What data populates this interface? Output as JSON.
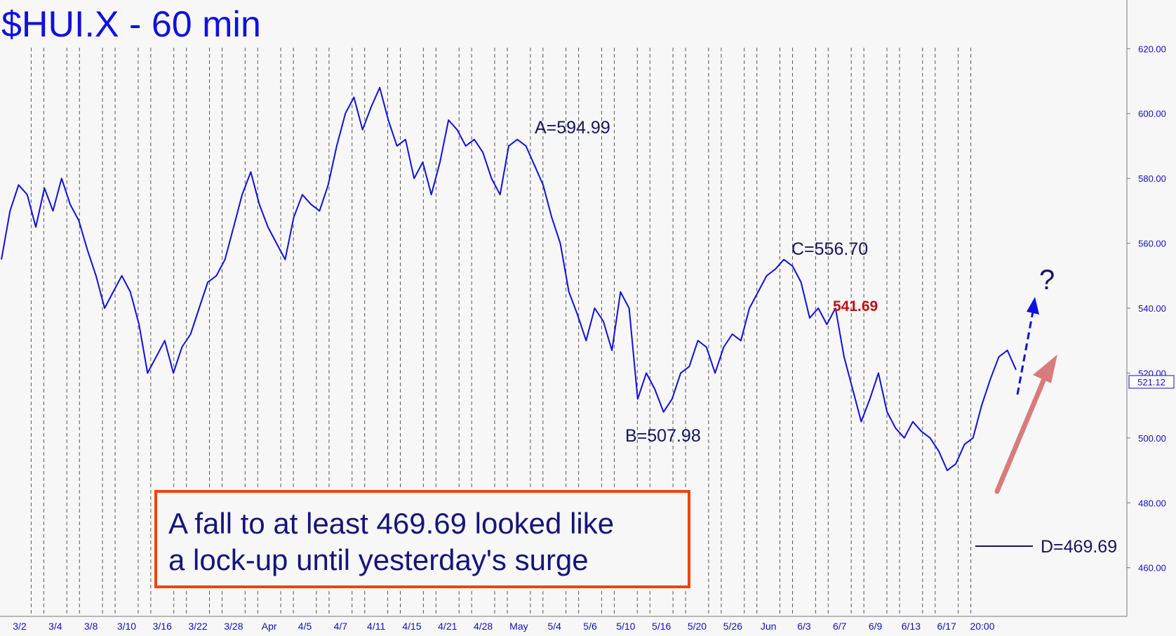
{
  "chart_data": {
    "type": "line",
    "title": "$HUI.X - 60 min",
    "ylim": [
      445,
      635
    ],
    "y_ticks": [
      460,
      480,
      500,
      520,
      540,
      560,
      580,
      600,
      620
    ],
    "last_price": "521.12",
    "x_labels": [
      "3/2",
      "3/4",
      "3/8",
      "3/10",
      "3/16",
      "3/22",
      "3/28",
      "Apr",
      "4/5",
      "4/7",
      "4/11",
      "4/15",
      "4/21",
      "4/28",
      "May",
      "5/4",
      "5/6",
      "5/10",
      "5/16",
      "5/20",
      "5/26",
      "Jun",
      "6/3",
      "6/7",
      "6/9",
      "6/13",
      "6/17",
      "20:00"
    ],
    "series": [
      {
        "values": [
          555,
          570,
          578,
          575,
          565,
          577,
          570,
          580,
          572,
          567,
          558,
          550,
          540,
          545,
          550,
          545,
          535,
          520,
          525,
          530,
          520,
          528,
          532,
          540,
          548,
          550,
          555,
          565,
          575,
          582,
          572,
          565,
          560,
          555,
          568,
          575,
          572,
          570,
          578,
          590,
          600,
          605,
          595,
          602,
          608,
          598,
          590,
          592,
          580,
          585,
          575,
          585,
          598,
          595,
          590,
          592,
          588,
          580,
          575,
          590,
          592,
          590,
          584,
          578,
          568,
          560,
          545,
          538,
          530,
          540,
          536,
          527,
          545,
          540,
          512,
          520,
          515,
          508,
          512,
          520,
          522,
          530,
          528,
          520,
          528,
          532,
          530,
          540,
          545,
          550,
          552,
          555,
          553,
          548,
          537,
          540,
          535,
          540,
          525,
          515,
          505,
          512,
          520,
          508,
          503,
          500,
          505,
          502,
          500,
          496,
          490,
          492,
          498,
          500,
          510,
          518,
          525,
          527,
          521
        ]
      }
    ],
    "annotations": [
      {
        "text": "A=594.99"
      },
      {
        "text": "B=507.98"
      },
      {
        "text": "C=556.70"
      },
      {
        "text": "541.69"
      },
      {
        "text": "D=469.69",
        "value": 469.69
      },
      {
        "text": "?"
      }
    ],
    "note": {
      "line1": "A fall to at least 469.69 looked like",
      "line2": "a lock-up until yesterday's surge"
    },
    "colors": {
      "price": "#1010e0",
      "axis_text": "#1010c0",
      "annotation": "#15155f",
      "highlight": "#c01010",
      "note_border": "#ee4410",
      "note_text": "#15157a",
      "arrow_up": "#d97b7b"
    }
  }
}
